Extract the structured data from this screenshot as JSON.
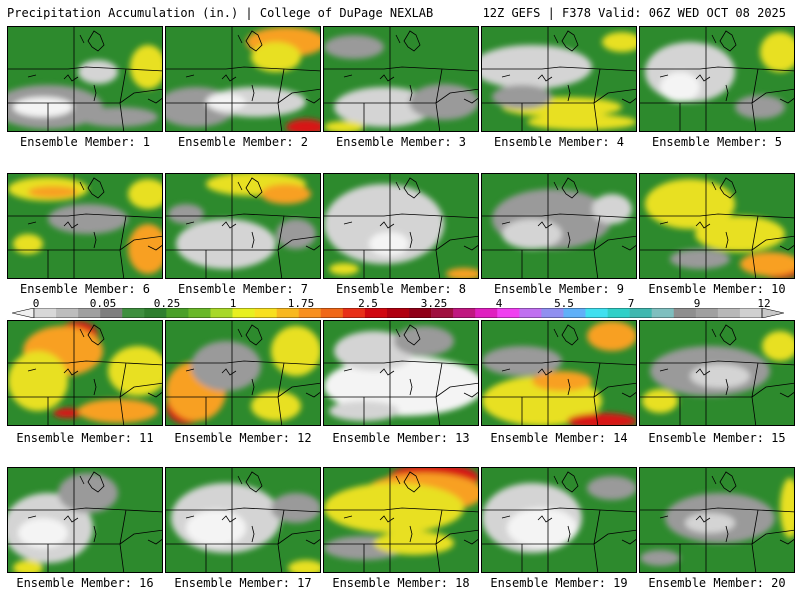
{
  "header": {
    "title": "Precipitation Accumulation (in.) | College of DuPage NEXLAB",
    "run_info": "12Z GEFS | F378 Valid: 06Z WED OCT 08 2025"
  },
  "members": [
    {
      "label": "Ensemble Member: 1"
    },
    {
      "label": "Ensemble Member: 2"
    },
    {
      "label": "Ensemble Member: 3"
    },
    {
      "label": "Ensemble Member: 4"
    },
    {
      "label": "Ensemble Member: 5"
    },
    {
      "label": "Ensemble Member: 6"
    },
    {
      "label": "Ensemble Member: 7"
    },
    {
      "label": "Ensemble Member: 8"
    },
    {
      "label": "Ensemble Member: 9"
    },
    {
      "label": "Ensemble Member: 10"
    },
    {
      "label": "Ensemble Member: 11"
    },
    {
      "label": "Ensemble Member: 12"
    },
    {
      "label": "Ensemble Member: 13"
    },
    {
      "label": "Ensemble Member: 14"
    },
    {
      "label": "Ensemble Member: 15"
    },
    {
      "label": "Ensemble Member: 16"
    },
    {
      "label": "Ensemble Member: 17"
    },
    {
      "label": "Ensemble Member: 18"
    },
    {
      "label": "Ensemble Member: 19"
    },
    {
      "label": "Ensemble Member: 20"
    }
  ],
  "colorbar": {
    "ticks": [
      "0",
      "0.05",
      "0.25",
      "1",
      "1.75",
      "2.5",
      "3.25",
      "4",
      "5.5",
      "7",
      "9",
      "12"
    ],
    "colors": [
      "#d8d8d8",
      "#bdbdbd",
      "#a0a0a0",
      "#7f7f7f",
      "#3f8f3f",
      "#2f7f2f",
      "#4aa02a",
      "#6ab82a",
      "#a8d828",
      "#e8f020",
      "#f8e020",
      "#f8b820",
      "#f89020",
      "#f06818",
      "#e83018",
      "#d00810",
      "#b00010",
      "#900018",
      "#a01040",
      "#c01880",
      "#e020c0",
      "#f040f0",
      "#c070f0",
      "#9090f0",
      "#60b0f8",
      "#40e0f0",
      "#30d0c8",
      "#40b8b0",
      "#7fbfbf",
      "#8f8f8f",
      "#a0a0a0",
      "#b8b8b8",
      "#d0d0d0"
    ],
    "palette": {
      "green": "#2d8a2d",
      "grey": "#9a9a9a",
      "lightgrey": "#d4d4d4",
      "white": "#f4f4f4",
      "yellow": "#e8e020",
      "orange": "#f8a020",
      "red": "#d81818"
    }
  }
}
